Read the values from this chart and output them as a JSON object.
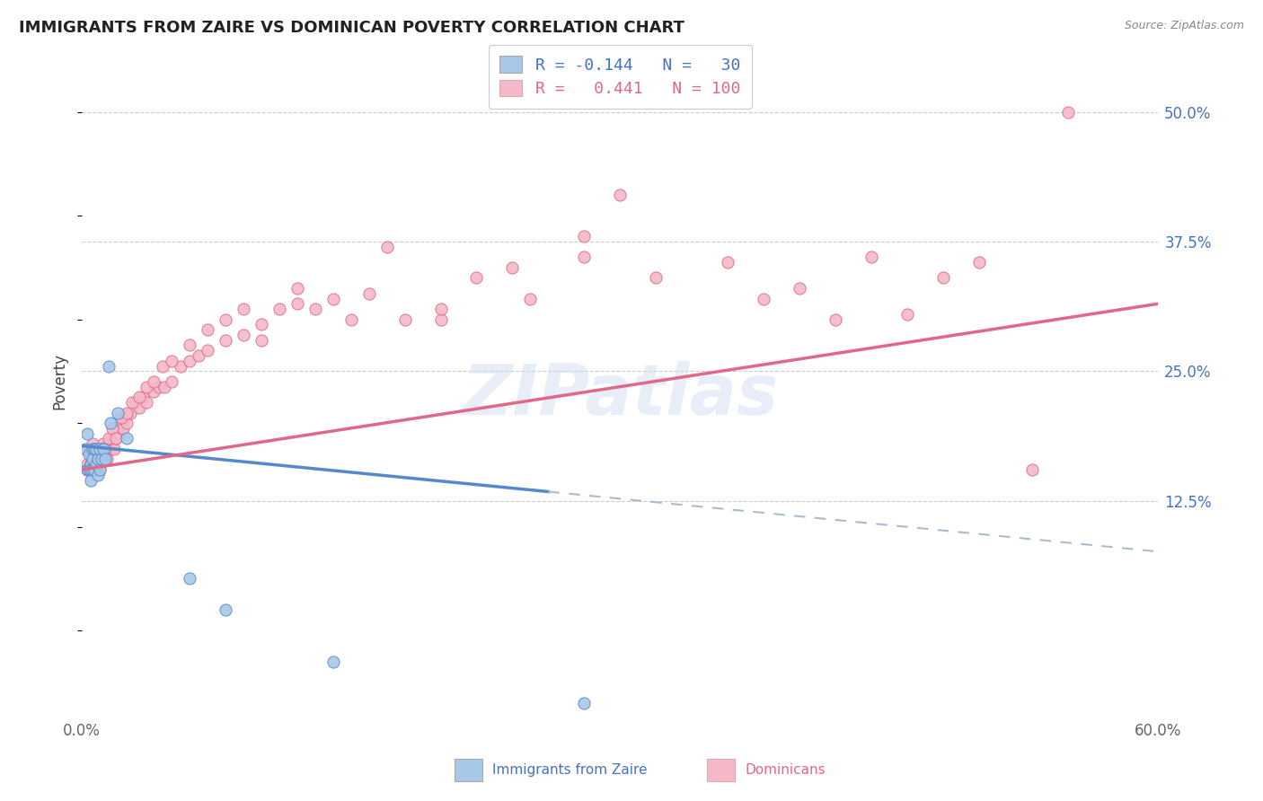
{
  "title": "IMMIGRANTS FROM ZAIRE VS DOMINICAN POVERTY CORRELATION CHART",
  "source": "Source: ZipAtlas.com",
  "xlabel_zaire": "Immigrants from Zaire",
  "xlabel_dominicans": "Dominicans",
  "ylabel": "Poverty",
  "r_zaire": -0.144,
  "n_zaire": 30,
  "r_dominicans": 0.441,
  "n_dominicans": 100,
  "xmin": 0.0,
  "xmax": 0.6,
  "ymin": -0.08,
  "ymax": 0.56,
  "yticks": [
    0.125,
    0.25,
    0.375,
    0.5
  ],
  "ytick_labels": [
    "12.5%",
    "25.0%",
    "37.5%",
    "50.0%"
  ],
  "color_zaire": "#a8c8e8",
  "color_dominicans": "#f5b8c8",
  "line_color_zaire": "#5588cc",
  "line_color_dominicans": "#e06888",
  "watermark_color": "#d0dff0",
  "zaire_points_x": [
    0.002,
    0.003,
    0.003,
    0.004,
    0.004,
    0.005,
    0.005,
    0.005,
    0.006,
    0.006,
    0.006,
    0.007,
    0.007,
    0.008,
    0.008,
    0.009,
    0.009,
    0.01,
    0.01,
    0.011,
    0.012,
    0.013,
    0.015,
    0.016,
    0.02,
    0.025,
    0.06,
    0.08,
    0.14,
    0.28
  ],
  "zaire_points_y": [
    0.175,
    0.19,
    0.155,
    0.17,
    0.155,
    0.16,
    0.155,
    0.145,
    0.175,
    0.165,
    0.155,
    0.175,
    0.155,
    0.175,
    0.16,
    0.165,
    0.15,
    0.175,
    0.155,
    0.165,
    0.175,
    0.165,
    0.255,
    0.2,
    0.21,
    0.185,
    0.05,
    0.02,
    -0.03,
    -0.07
  ],
  "dominican_points_x": [
    0.003,
    0.004,
    0.004,
    0.005,
    0.005,
    0.005,
    0.006,
    0.006,
    0.006,
    0.007,
    0.007,
    0.008,
    0.008,
    0.009,
    0.009,
    0.01,
    0.01,
    0.01,
    0.011,
    0.012,
    0.012,
    0.013,
    0.014,
    0.015,
    0.016,
    0.017,
    0.018,
    0.019,
    0.02,
    0.021,
    0.022,
    0.023,
    0.024,
    0.025,
    0.027,
    0.03,
    0.032,
    0.034,
    0.036,
    0.04,
    0.043,
    0.046,
    0.05,
    0.055,
    0.06,
    0.065,
    0.07,
    0.08,
    0.09,
    0.1,
    0.11,
    0.12,
    0.13,
    0.15,
    0.17,
    0.2,
    0.22,
    0.25,
    0.28,
    0.3,
    0.003,
    0.005,
    0.007,
    0.009,
    0.011,
    0.013,
    0.015,
    0.017,
    0.019,
    0.022,
    0.025,
    0.028,
    0.032,
    0.036,
    0.04,
    0.045,
    0.05,
    0.06,
    0.07,
    0.08,
    0.09,
    0.1,
    0.12,
    0.14,
    0.16,
    0.18,
    0.2,
    0.24,
    0.28,
    0.32,
    0.36,
    0.4,
    0.44,
    0.48,
    0.5,
    0.53,
    0.42,
    0.46,
    0.38,
    0.55
  ],
  "dominican_points_y": [
    0.16,
    0.175,
    0.155,
    0.17,
    0.16,
    0.155,
    0.18,
    0.165,
    0.16,
    0.17,
    0.155,
    0.175,
    0.16,
    0.165,
    0.155,
    0.175,
    0.165,
    0.155,
    0.17,
    0.18,
    0.165,
    0.175,
    0.165,
    0.18,
    0.175,
    0.185,
    0.175,
    0.185,
    0.195,
    0.19,
    0.2,
    0.195,
    0.205,
    0.2,
    0.21,
    0.22,
    0.215,
    0.225,
    0.22,
    0.23,
    0.235,
    0.235,
    0.24,
    0.255,
    0.26,
    0.265,
    0.27,
    0.28,
    0.285,
    0.295,
    0.31,
    0.33,
    0.31,
    0.3,
    0.37,
    0.3,
    0.34,
    0.32,
    0.36,
    0.42,
    0.155,
    0.16,
    0.17,
    0.165,
    0.175,
    0.175,
    0.185,
    0.195,
    0.185,
    0.205,
    0.21,
    0.22,
    0.225,
    0.235,
    0.24,
    0.255,
    0.26,
    0.275,
    0.29,
    0.3,
    0.31,
    0.28,
    0.315,
    0.32,
    0.325,
    0.3,
    0.31,
    0.35,
    0.38,
    0.34,
    0.355,
    0.33,
    0.36,
    0.34,
    0.355,
    0.155,
    0.3,
    0.305,
    0.32,
    0.5
  ],
  "trend_zaire_x0": 0.0,
  "trend_zaire_y0": 0.178,
  "trend_zaire_x1": 0.3,
  "trend_zaire_y1": 0.127,
  "trend_dominican_x0": 0.0,
  "trend_dominican_y0": 0.155,
  "trend_dominican_x1": 0.6,
  "trend_dominican_y1": 0.315
}
